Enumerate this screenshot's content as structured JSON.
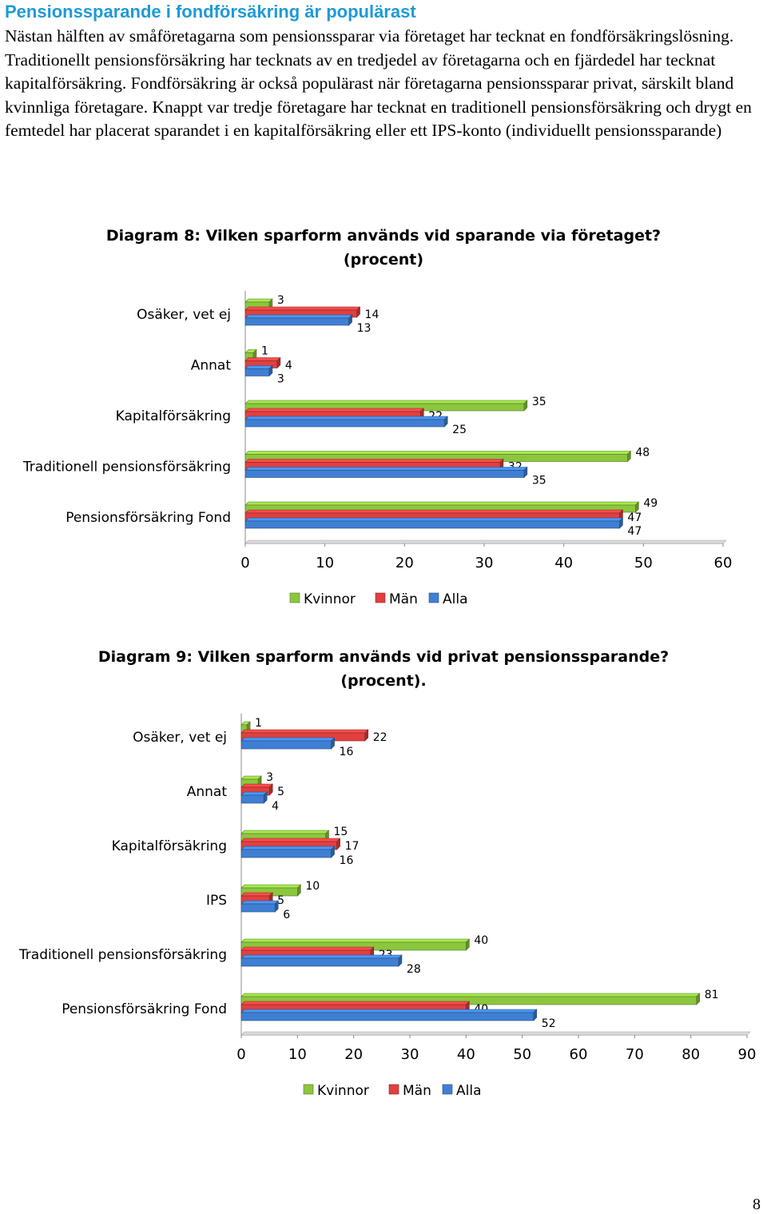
{
  "heading": "Pensionssparande i fondförsäkring är populärast",
  "paragraph": "Nästan hälften av småföretagarna som pensionssparar via företaget har tecknat en fondförsäkringslösning. Traditionellt pensionsförsäkring har tecknats av en tredjedel av företagarna och en fjärdedel har tecknat kapitalförsäkring. Fondförsäkring är också populärast när företagarna pensionssparar privat, särskilt bland kvinnliga företagare. Knappt var tredje företagare har tecknat en traditionell pensionsförsäkring och drygt en femtedel har placerat sparandet i en kapitalförsäkring eller ett IPS-konto (individuellt pensionssparande)",
  "page_number": "8",
  "colors": {
    "kvinnor": "#8cc63f",
    "man": "#e0403f",
    "alla": "#3f7fd3"
  },
  "chart_data": [
    {
      "type": "bar",
      "orientation": "horizontal",
      "title": "Diagram 8: Vilken sparform används vid  sparande via företaget?",
      "subtitle": "(procent)",
      "categories": [
        "Osäker, vet ej",
        "Annat",
        "Kapitalförsäkring",
        "Traditionell pensionsförsäkring",
        "Pensionsförsäkring Fond"
      ],
      "series": [
        {
          "name": "Kvinnor",
          "values": [
            3,
            1,
            35,
            48,
            49
          ]
        },
        {
          "name": "Män",
          "values": [
            14,
            4,
            22,
            32,
            47
          ]
        },
        {
          "name": "Alla",
          "values": [
            13,
            3,
            25,
            35,
            47
          ]
        }
      ],
      "xlim": [
        0,
        60
      ],
      "ticks": [
        "0",
        "10",
        "20",
        "30",
        "40",
        "50",
        "60"
      ],
      "legend": "bottom"
    },
    {
      "type": "bar",
      "orientation": "horizontal",
      "title": "Diagram 9: Vilken sparform används vid  privat pensionssparande?",
      "subtitle": "(procent).",
      "categories": [
        "Osäker, vet ej",
        "Annat",
        "Kapitalförsäkring",
        "IPS",
        "Traditionell pensionsförsäkring",
        "Pensionsförsäkring Fond"
      ],
      "series": [
        {
          "name": "Kvinnor",
          "values": [
            1,
            3,
            15,
            10,
            40,
            81
          ]
        },
        {
          "name": "Män",
          "values": [
            22,
            5,
            17,
            5,
            23,
            40
          ]
        },
        {
          "name": "Alla",
          "values": [
            16,
            4,
            16,
            6,
            28,
            52
          ]
        }
      ],
      "xlim": [
        0,
        90
      ],
      "ticks": [
        "0",
        "10",
        "20",
        "30",
        "40",
        "50",
        "60",
        "70",
        "80",
        "90"
      ],
      "legend": "bottom"
    }
  ]
}
